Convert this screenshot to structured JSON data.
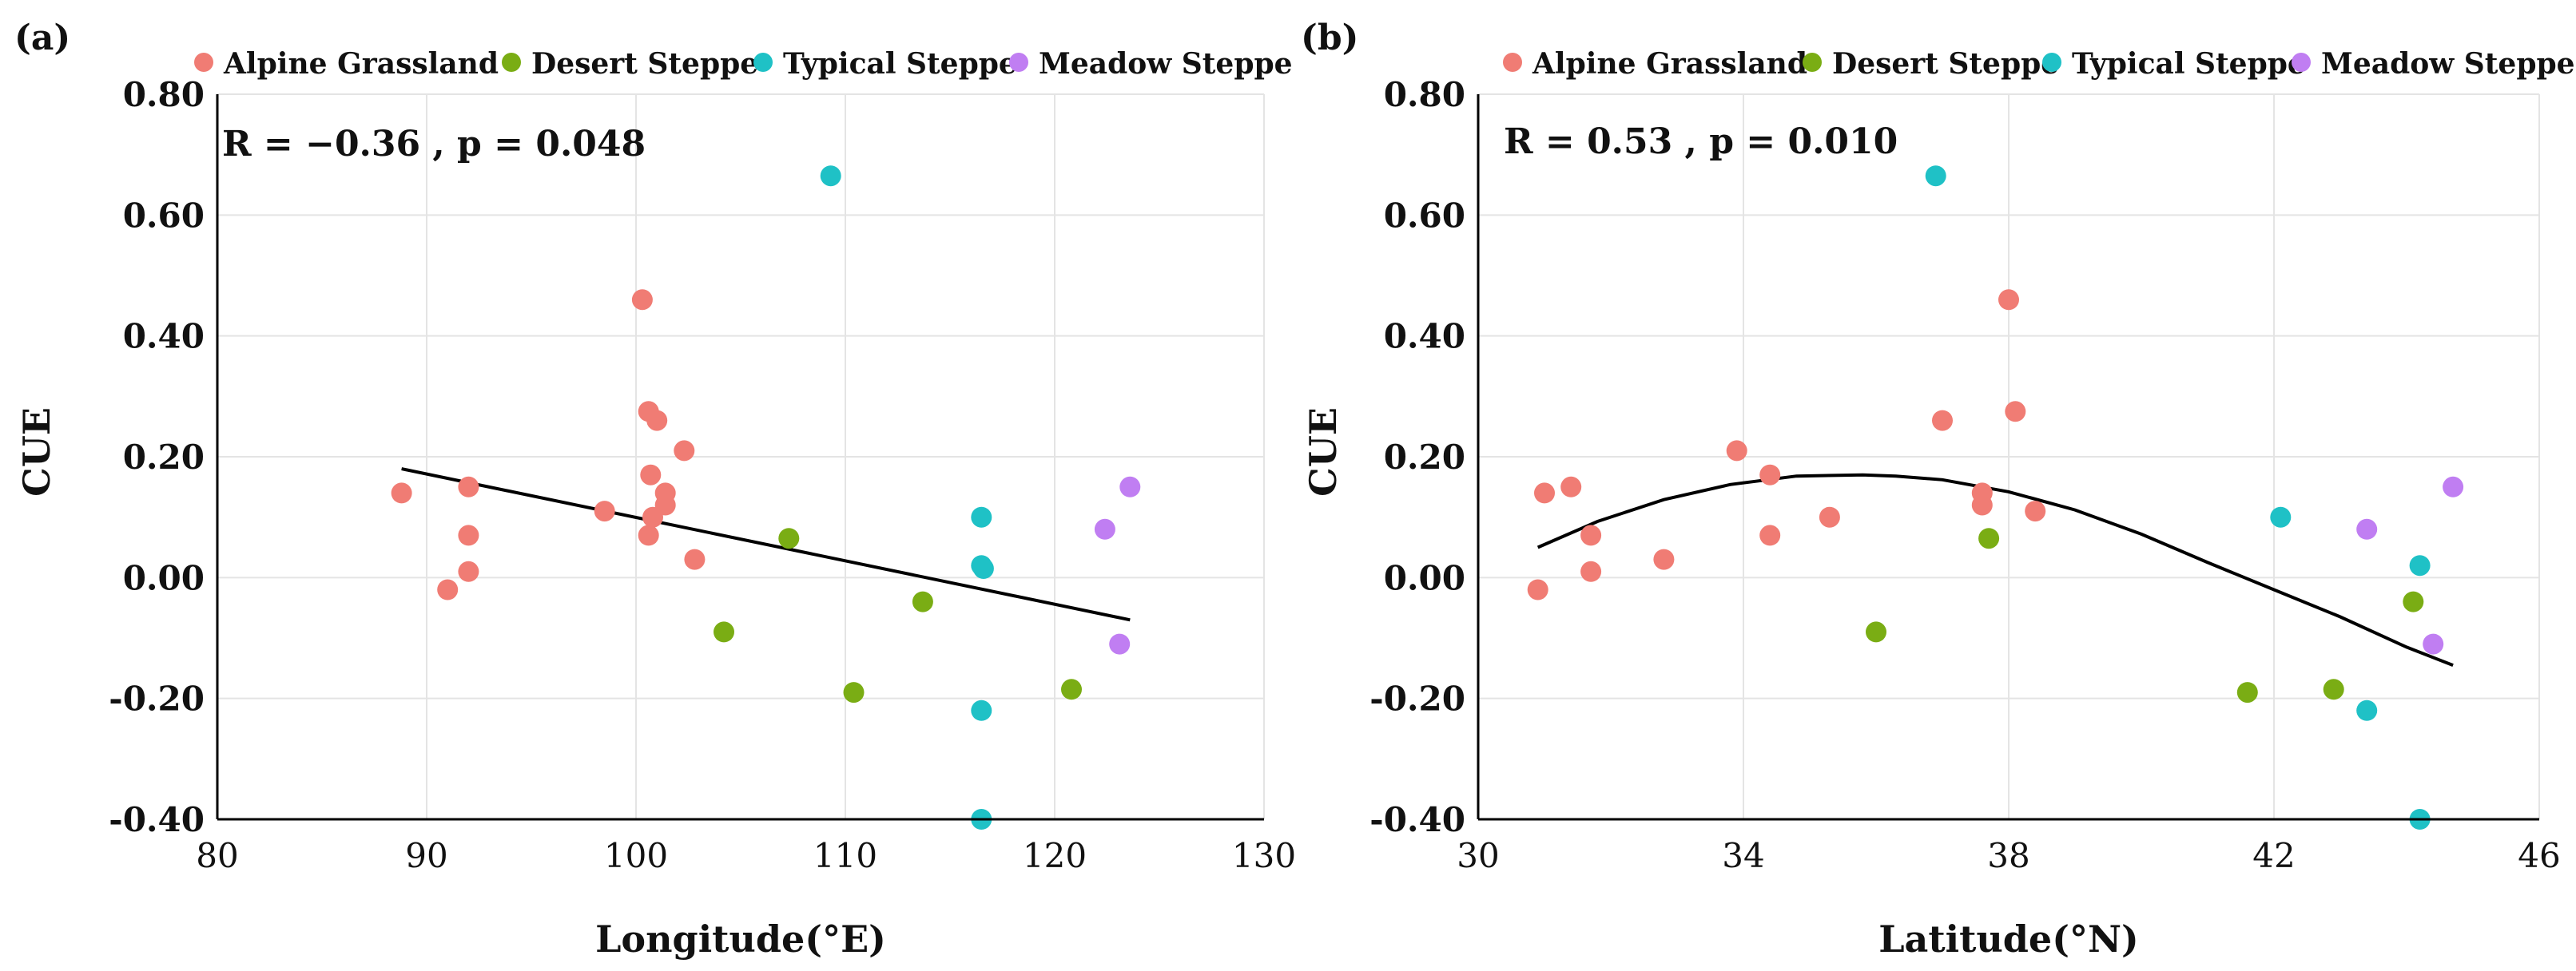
{
  "colors": {
    "Alpine Grassland": "#f07c74",
    "Desert Steppe": "#7aad14",
    "Typical Steppe": "#1fc1c6",
    "Meadow Steppe": "#c07ef2",
    "grid": "#e4e4e4",
    "axis": "#000000",
    "fit": "#000000"
  },
  "chart_data": [
    {
      "type": "scatter",
      "panel_label": "(a)",
      "title": "",
      "xlabel": "Longitude(°E)",
      "ylabel": "CUE",
      "xlim": [
        80,
        130
      ],
      "ylim": [
        -0.4,
        0.8
      ],
      "xticks": [
        80,
        90,
        100,
        110,
        120,
        130
      ],
      "xtick_labels": [
        "80",
        "90",
        "100",
        "110",
        "120",
        "130"
      ],
      "yticks": [
        -0.4,
        -0.2,
        0.0,
        0.2,
        0.4,
        0.6,
        0.8
      ],
      "ytick_labels": [
        "-0.40",
        "-0.20",
        "0.00",
        "0.20",
        "0.40",
        "0.60",
        "0.80"
      ],
      "grid": true,
      "legend_position": "top",
      "annotation": "R = −0.36 , p = 0.048",
      "fit": {
        "type": "linear",
        "x": [
          88.8,
          123.6
        ],
        "y": [
          0.18,
          -0.07
        ]
      },
      "series": [
        {
          "name": "Alpine Grassland",
          "points": [
            [
              88.8,
              0.14
            ],
            [
              91.0,
              -0.02
            ],
            [
              92.0,
              0.15
            ],
            [
              92.0,
              0.07
            ],
            [
              92.0,
              0.01
            ],
            [
              98.5,
              0.11
            ],
            [
              100.3,
              0.46
            ],
            [
              100.6,
              0.275
            ],
            [
              101.0,
              0.26
            ],
            [
              100.7,
              0.17
            ],
            [
              100.8,
              0.1
            ],
            [
              100.6,
              0.07
            ],
            [
              101.4,
              0.14
            ],
            [
              101.4,
              0.12
            ],
            [
              102.3,
              0.21
            ],
            [
              102.8,
              0.03
            ]
          ]
        },
        {
          "name": "Desert Steppe",
          "points": [
            [
              104.2,
              -0.09
            ],
            [
              107.3,
              0.065
            ],
            [
              110.4,
              -0.19
            ],
            [
              113.7,
              -0.04
            ],
            [
              120.8,
              -0.185
            ]
          ]
        },
        {
          "name": "Typical Steppe",
          "points": [
            [
              109.3,
              0.665
            ],
            [
              116.5,
              0.1
            ],
            [
              116.5,
              0.02
            ],
            [
              116.6,
              0.015
            ],
            [
              116.5,
              -0.22
            ],
            [
              116.5,
              -0.4
            ]
          ]
        },
        {
          "name": "Meadow Steppe",
          "points": [
            [
              122.4,
              0.08
            ],
            [
              123.1,
              -0.11
            ],
            [
              123.6,
              0.15
            ]
          ]
        }
      ]
    },
    {
      "type": "scatter",
      "panel_label": "(b)",
      "title": "",
      "xlabel": "Latitude(°N)",
      "ylabel": "CUE",
      "xlim": [
        30,
        46
      ],
      "ylim": [
        -0.4,
        0.8
      ],
      "xticks": [
        30,
        34,
        38,
        42,
        46
      ],
      "xtick_labels": [
        "30",
        "34",
        "38",
        "42",
        "46"
      ],
      "yticks": [
        -0.4,
        -0.2,
        0.0,
        0.2,
        0.4,
        0.6,
        0.8
      ],
      "ytick_labels": [
        "-0.40",
        "-0.20",
        "0.00",
        "0.20",
        "0.40",
        "0.60",
        "0.80"
      ],
      "grid": true,
      "legend_position": "top",
      "annotation": "R = 0.53 , p = 0.010",
      "fit": {
        "type": "quadratic",
        "x": [
          30.9,
          31.8,
          32.8,
          33.8,
          34.8,
          35.8,
          36.3,
          37.0,
          38.0,
          39.0,
          40.0,
          41.0,
          42.0,
          43.0,
          44.0,
          44.7
        ],
        "y": [
          0.05,
          0.093,
          0.129,
          0.154,
          0.168,
          0.17,
          0.168,
          0.162,
          0.142,
          0.112,
          0.072,
          0.025,
          -0.02,
          -0.065,
          -0.115,
          -0.145
        ]
      },
      "series": [
        {
          "name": "Alpine Grassland",
          "points": [
            [
              30.9,
              -0.02
            ],
            [
              31.0,
              0.14
            ],
            [
              31.4,
              0.15
            ],
            [
              31.7,
              0.07
            ],
            [
              31.7,
              0.01
            ],
            [
              32.8,
              0.03
            ],
            [
              33.9,
              0.21
            ],
            [
              34.4,
              0.17
            ],
            [
              34.4,
              0.07
            ],
            [
              35.3,
              0.1
            ],
            [
              37.0,
              0.26
            ],
            [
              37.6,
              0.14
            ],
            [
              37.6,
              0.12
            ],
            [
              38.0,
              0.46
            ],
            [
              38.1,
              0.275
            ],
            [
              38.4,
              0.11
            ]
          ]
        },
        {
          "name": "Desert Steppe",
          "points": [
            [
              36.0,
              -0.09
            ],
            [
              37.7,
              0.065
            ],
            [
              41.6,
              -0.19
            ],
            [
              42.9,
              -0.185
            ],
            [
              44.1,
              -0.04
            ]
          ]
        },
        {
          "name": "Typical Steppe",
          "points": [
            [
              36.9,
              0.665
            ],
            [
              42.1,
              0.1
            ],
            [
              43.4,
              -0.22
            ],
            [
              44.2,
              0.02
            ],
            [
              44.2,
              -0.4
            ]
          ]
        },
        {
          "name": "Meadow Steppe",
          "points": [
            [
              43.4,
              0.08
            ],
            [
              44.4,
              -0.11
            ],
            [
              44.7,
              0.15
            ]
          ]
        }
      ]
    }
  ]
}
